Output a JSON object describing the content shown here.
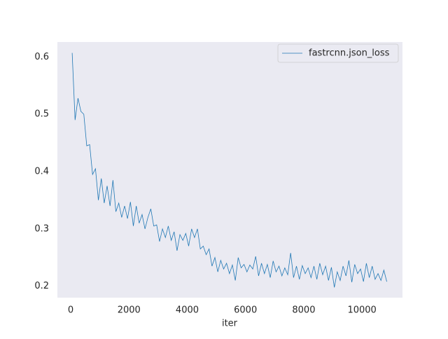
{
  "chart_data": {
    "type": "line",
    "xlabel": "iter",
    "x": [
      50,
      150,
      250,
      350,
      450,
      550,
      650,
      750,
      850,
      950,
      1050,
      1150,
      1250,
      1350,
      1450,
      1550,
      1650,
      1750,
      1850,
      1950,
      2050,
      2150,
      2250,
      2350,
      2450,
      2550,
      2650,
      2750,
      2850,
      2950,
      3050,
      3150,
      3250,
      3350,
      3450,
      3550,
      3650,
      3750,
      3850,
      3950,
      4050,
      4150,
      4250,
      4350,
      4450,
      4550,
      4650,
      4750,
      4850,
      4950,
      5050,
      5150,
      5250,
      5350,
      5450,
      5550,
      5650,
      5750,
      5850,
      5950,
      6050,
      6150,
      6250,
      6350,
      6450,
      6550,
      6650,
      6750,
      6850,
      6950,
      7050,
      7150,
      7250,
      7350,
      7450,
      7550,
      7650,
      7750,
      7850,
      7950,
      8050,
      8150,
      8250,
      8350,
      8450,
      8550,
      8650,
      8750,
      8850,
      8950,
      9050,
      9150,
      9250,
      9350,
      9450,
      9550,
      9650,
      9750,
      9850,
      9950,
      10050,
      10150,
      10250,
      10350,
      10450,
      10550,
      10650,
      10750,
      10850
    ],
    "series": [
      {
        "name": "fastrcnn.json_loss",
        "color": "#1f77b4",
        "values": [
          0.607,
          0.49,
          0.528,
          0.505,
          0.5,
          0.445,
          0.447,
          0.395,
          0.405,
          0.35,
          0.388,
          0.345,
          0.375,
          0.34,
          0.385,
          0.33,
          0.345,
          0.32,
          0.34,
          0.318,
          0.347,
          0.305,
          0.34,
          0.31,
          0.325,
          0.3,
          0.32,
          0.335,
          0.305,
          0.307,
          0.278,
          0.3,
          0.285,
          0.305,
          0.28,
          0.295,
          0.262,
          0.29,
          0.28,
          0.292,
          0.27,
          0.3,
          0.285,
          0.3,
          0.265,
          0.27,
          0.255,
          0.265,
          0.235,
          0.25,
          0.225,
          0.245,
          0.23,
          0.24,
          0.222,
          0.237,
          0.21,
          0.25,
          0.232,
          0.238,
          0.225,
          0.237,
          0.23,
          0.252,
          0.218,
          0.24,
          0.222,
          0.238,
          0.215,
          0.244,
          0.225,
          0.235,
          0.218,
          0.232,
          0.22,
          0.258,
          0.215,
          0.235,
          0.212,
          0.236,
          0.222,
          0.232,
          0.215,
          0.235,
          0.212,
          0.24,
          0.22,
          0.235,
          0.21,
          0.233,
          0.198,
          0.225,
          0.21,
          0.235,
          0.218,
          0.245,
          0.207,
          0.238,
          0.222,
          0.23,
          0.208,
          0.24,
          0.215,
          0.235,
          0.212,
          0.222,
          0.21,
          0.228,
          0.208
        ]
      }
    ],
    "xlim": [
      -457,
      11390
    ],
    "ylim": [
      0.18,
      0.626
    ],
    "xticks": [
      0,
      2000,
      4000,
      6000,
      8000,
      10000
    ],
    "yticks": [
      0.2,
      0.3,
      0.4,
      0.5,
      0.6
    ],
    "grid": false,
    "legend": "upper right"
  }
}
